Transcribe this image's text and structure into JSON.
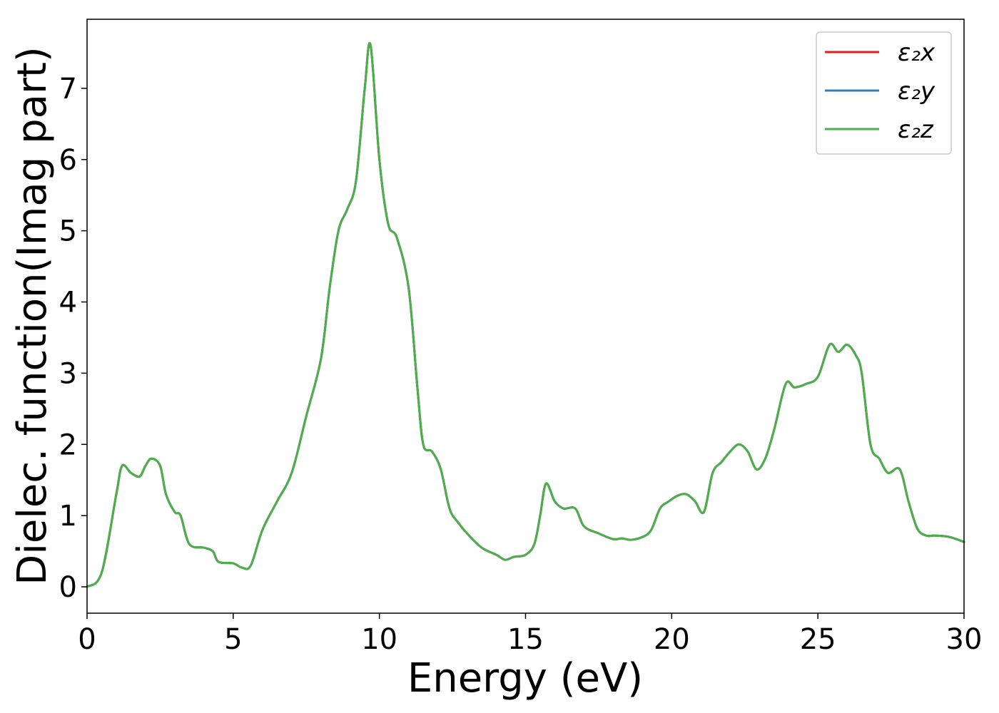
{
  "chart_data": {
    "type": "line",
    "title": "",
    "xlabel": "Energy (eV)",
    "ylabel": "Dielec. function(Imag part)",
    "xlim": [
      0,
      30
    ],
    "ylim": [
      -0.37,
      7.97
    ],
    "xticks": [
      0,
      5,
      10,
      15,
      20,
      25,
      30
    ],
    "yticks": [
      0,
      1,
      2,
      3,
      4,
      5,
      6,
      7
    ],
    "grid": false,
    "legend_position": "top-right",
    "x": [
      0,
      0.5,
      1.0,
      1.2,
      1.5,
      1.8,
      2.0,
      2.2,
      2.5,
      2.7,
      3.0,
      3.2,
      3.5,
      4.0,
      4.3,
      4.5,
      5.0,
      5.3,
      5.6,
      6.0,
      6.5,
      7.0,
      7.5,
      8.0,
      8.3,
      8.6,
      8.9,
      9.2,
      9.5,
      9.7,
      10.0,
      10.3,
      10.6,
      11.0,
      11.3,
      11.5,
      11.8,
      12.1,
      12.4,
      12.7,
      13.0,
      13.5,
      14.0,
      14.3,
      14.6,
      15.0,
      15.3,
      15.5,
      15.7,
      16.0,
      16.3,
      16.7,
      17.0,
      17.5,
      18.0,
      18.3,
      18.6,
      19.0,
      19.3,
      19.6,
      19.9,
      20.2,
      20.5,
      20.8,
      21.1,
      21.4,
      21.7,
      22.0,
      22.3,
      22.6,
      22.9,
      23.2,
      23.5,
      23.9,
      24.2,
      24.6,
      25.0,
      25.4,
      25.7,
      26.0,
      26.3,
      26.5,
      26.8,
      27.1,
      27.4,
      27.8,
      28.1,
      28.4,
      28.7,
      29.0,
      29.5,
      30.0
    ],
    "series": [
      {
        "name": "ε₂x",
        "color": "#e41a1c",
        "values": [
          0.0,
          0.2,
          1.3,
          1.7,
          1.6,
          1.55,
          1.7,
          1.8,
          1.7,
          1.3,
          1.05,
          1.0,
          0.6,
          0.55,
          0.5,
          0.35,
          0.33,
          0.27,
          0.3,
          0.8,
          1.2,
          1.6,
          2.4,
          3.2,
          4.2,
          5.0,
          5.3,
          5.7,
          7.0,
          7.6,
          6.0,
          5.1,
          4.9,
          4.2,
          2.8,
          2.0,
          1.9,
          1.65,
          1.1,
          0.9,
          0.75,
          0.55,
          0.45,
          0.38,
          0.42,
          0.45,
          0.6,
          1.0,
          1.45,
          1.2,
          1.1,
          1.1,
          0.85,
          0.75,
          0.67,
          0.68,
          0.66,
          0.7,
          0.8,
          1.1,
          1.2,
          1.28,
          1.3,
          1.2,
          1.05,
          1.6,
          1.75,
          1.9,
          2.0,
          1.9,
          1.65,
          1.8,
          2.2,
          2.85,
          2.8,
          2.85,
          2.95,
          3.4,
          3.3,
          3.4,
          3.25,
          3.0,
          2.0,
          1.8,
          1.6,
          1.65,
          1.2,
          0.82,
          0.72,
          0.72,
          0.7,
          0.63
        ]
      },
      {
        "name": "ε₂y",
        "color": "#377eb8",
        "values": [
          0.0,
          0.2,
          1.3,
          1.7,
          1.6,
          1.55,
          1.7,
          1.8,
          1.7,
          1.3,
          1.05,
          1.0,
          0.6,
          0.55,
          0.5,
          0.35,
          0.33,
          0.27,
          0.3,
          0.8,
          1.2,
          1.6,
          2.4,
          3.2,
          4.2,
          5.0,
          5.3,
          5.7,
          7.0,
          7.6,
          6.0,
          5.1,
          4.9,
          4.2,
          2.8,
          2.0,
          1.9,
          1.65,
          1.1,
          0.9,
          0.75,
          0.55,
          0.45,
          0.38,
          0.42,
          0.45,
          0.6,
          1.0,
          1.45,
          1.2,
          1.1,
          1.1,
          0.85,
          0.75,
          0.67,
          0.68,
          0.66,
          0.7,
          0.8,
          1.1,
          1.2,
          1.28,
          1.3,
          1.2,
          1.05,
          1.6,
          1.75,
          1.9,
          2.0,
          1.9,
          1.65,
          1.8,
          2.2,
          2.85,
          2.8,
          2.85,
          2.95,
          3.4,
          3.3,
          3.4,
          3.25,
          3.0,
          2.0,
          1.8,
          1.6,
          1.65,
          1.2,
          0.82,
          0.72,
          0.72,
          0.7,
          0.63
        ]
      },
      {
        "name": "ε₂z",
        "color": "#4daf4a",
        "values": [
          0.0,
          0.2,
          1.3,
          1.7,
          1.6,
          1.55,
          1.7,
          1.8,
          1.7,
          1.3,
          1.05,
          1.0,
          0.6,
          0.55,
          0.5,
          0.35,
          0.33,
          0.27,
          0.3,
          0.8,
          1.2,
          1.6,
          2.4,
          3.2,
          4.2,
          5.0,
          5.3,
          5.7,
          7.0,
          7.6,
          6.0,
          5.1,
          4.9,
          4.2,
          2.8,
          2.0,
          1.9,
          1.65,
          1.1,
          0.9,
          0.75,
          0.55,
          0.45,
          0.38,
          0.42,
          0.45,
          0.6,
          1.0,
          1.45,
          1.2,
          1.1,
          1.1,
          0.85,
          0.75,
          0.67,
          0.68,
          0.66,
          0.7,
          0.8,
          1.1,
          1.2,
          1.28,
          1.3,
          1.2,
          1.05,
          1.6,
          1.75,
          1.9,
          2.0,
          1.9,
          1.65,
          1.8,
          2.2,
          2.85,
          2.8,
          2.85,
          2.95,
          3.4,
          3.3,
          3.4,
          3.25,
          3.0,
          2.0,
          1.8,
          1.6,
          1.65,
          1.2,
          0.82,
          0.72,
          0.72,
          0.7,
          0.63
        ]
      }
    ]
  }
}
